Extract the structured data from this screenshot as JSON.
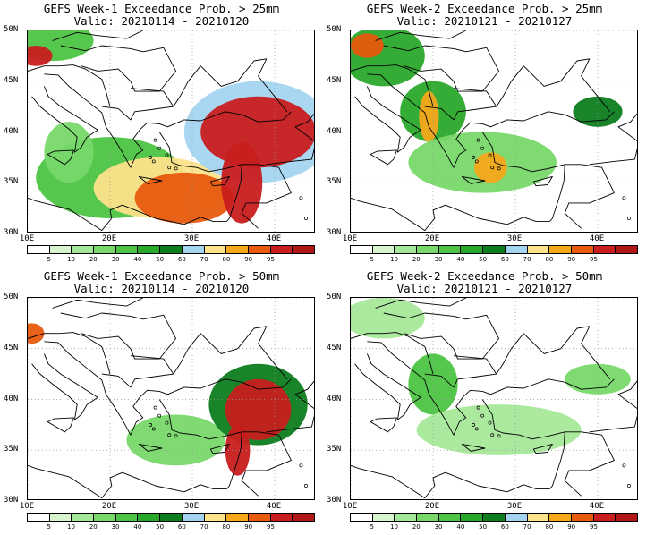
{
  "panels": [
    {
      "title": "GEFS Week-1 Exceedance Prob. > 25mm",
      "valid": "Valid: 20210114 - 20210120"
    },
    {
      "title": "GEFS Week-2 Exceedance Prob. > 25mm",
      "valid": "Valid: 20210121 - 20210127"
    },
    {
      "title": "GEFS Week-1 Exceedance Prob. > 50mm",
      "valid": "Valid: 20210114 - 20210120"
    },
    {
      "title": "GEFS Week-2 Exceedance Prob. > 50mm",
      "valid": "Valid: 20210121 - 20210127"
    }
  ],
  "lat_labels": [
    "50N",
    "45N",
    "40N",
    "35N",
    "30N"
  ],
  "lat_values": [
    50,
    45,
    40,
    35,
    30
  ],
  "lon_labels": [
    "10E",
    "20E",
    "30E",
    "40E"
  ],
  "lon_values": [
    10,
    20,
    30,
    40
  ],
  "extent": {
    "lon": [
      10,
      45
    ],
    "lat": [
      30,
      50
    ]
  },
  "colorbar": {
    "labels": [
      "5",
      "10",
      "20",
      "30",
      "40",
      "50",
      "60",
      "70",
      "80",
      "90",
      "95"
    ],
    "colors": [
      "#ffffff",
      "#d8f5d0",
      "#a6e89a",
      "#78d86a",
      "#4dc443",
      "#2aa82a",
      "#0d7d1e",
      "#a4d4f0",
      "#fde38a",
      "#f6a81b",
      "#e85a0e",
      "#c81e1e",
      "#b01818"
    ]
  },
  "level_colors": [
    "#d8f5d0",
    "#a6e89a",
    "#78d86a",
    "#4dc443",
    "#2aa82a",
    "#0d7d1e",
    "#a4d4f0",
    "#fde38a",
    "#f6a81b",
    "#e85a0e",
    "#c81e1e"
  ],
  "fields": [
    [
      {
        "lon": 13,
        "lat": 49,
        "rx": 5,
        "ry": 2,
        "lvl": 3
      },
      {
        "lon": 11,
        "lat": 47.5,
        "rx": 2,
        "ry": 1,
        "lvl": 10
      },
      {
        "lon": 20,
        "lat": 35.5,
        "rx": 9,
        "ry": 4,
        "lvl": 3
      },
      {
        "lon": 26,
        "lat": 34.5,
        "rx": 8,
        "ry": 3,
        "lvl": 7
      },
      {
        "lon": 29,
        "lat": 33.5,
        "rx": 6,
        "ry": 2.5,
        "lvl": 9
      },
      {
        "lon": 38,
        "lat": 40,
        "rx": 9,
        "ry": 5,
        "lvl": 6
      },
      {
        "lon": 38,
        "lat": 40,
        "rx": 7,
        "ry": 3.5,
        "lvl": 10
      },
      {
        "lon": 36,
        "lat": 35,
        "rx": 2.5,
        "ry": 4,
        "lvl": 10
      },
      {
        "lon": 15,
        "lat": 38,
        "rx": 3,
        "ry": 3,
        "lvl": 2
      }
    ],
    [
      {
        "lon": 14,
        "lat": 47.5,
        "rx": 5,
        "ry": 3,
        "lvl": 4
      },
      {
        "lon": 12,
        "lat": 48.5,
        "rx": 2,
        "ry": 1.2,
        "lvl": 9
      },
      {
        "lon": 20,
        "lat": 42,
        "rx": 4,
        "ry": 3,
        "lvl": 4
      },
      {
        "lon": 19.5,
        "lat": 41.5,
        "rx": 1.2,
        "ry": 2.5,
        "lvl": 8
      },
      {
        "lon": 26,
        "lat": 37,
        "rx": 9,
        "ry": 3,
        "lvl": 2
      },
      {
        "lon": 27,
        "lat": 36.5,
        "rx": 2,
        "ry": 1.5,
        "lvl": 8
      },
      {
        "lon": 40,
        "lat": 42,
        "rx": 3,
        "ry": 1.5,
        "lvl": 5
      }
    ],
    [
      {
        "lon": 10.5,
        "lat": 46.5,
        "rx": 1.5,
        "ry": 1,
        "lvl": 9
      },
      {
        "lon": 28,
        "lat": 36,
        "rx": 6,
        "ry": 2.5,
        "lvl": 2
      },
      {
        "lon": 38,
        "lat": 39.5,
        "rx": 6,
        "ry": 4,
        "lvl": 5
      },
      {
        "lon": 38,
        "lat": 39,
        "rx": 4,
        "ry": 3,
        "lvl": 10
      },
      {
        "lon": 35.5,
        "lat": 35,
        "rx": 1.5,
        "ry": 2.5,
        "lvl": 10
      }
    ],
    [
      {
        "lon": 14,
        "lat": 48,
        "rx": 5,
        "ry": 2,
        "lvl": 1
      },
      {
        "lon": 20,
        "lat": 41.5,
        "rx": 3,
        "ry": 3,
        "lvl": 3
      },
      {
        "lon": 28,
        "lat": 37,
        "rx": 10,
        "ry": 2.5,
        "lvl": 1
      },
      {
        "lon": 40,
        "lat": 42,
        "rx": 4,
        "ry": 1.5,
        "lvl": 2
      }
    ]
  ]
}
